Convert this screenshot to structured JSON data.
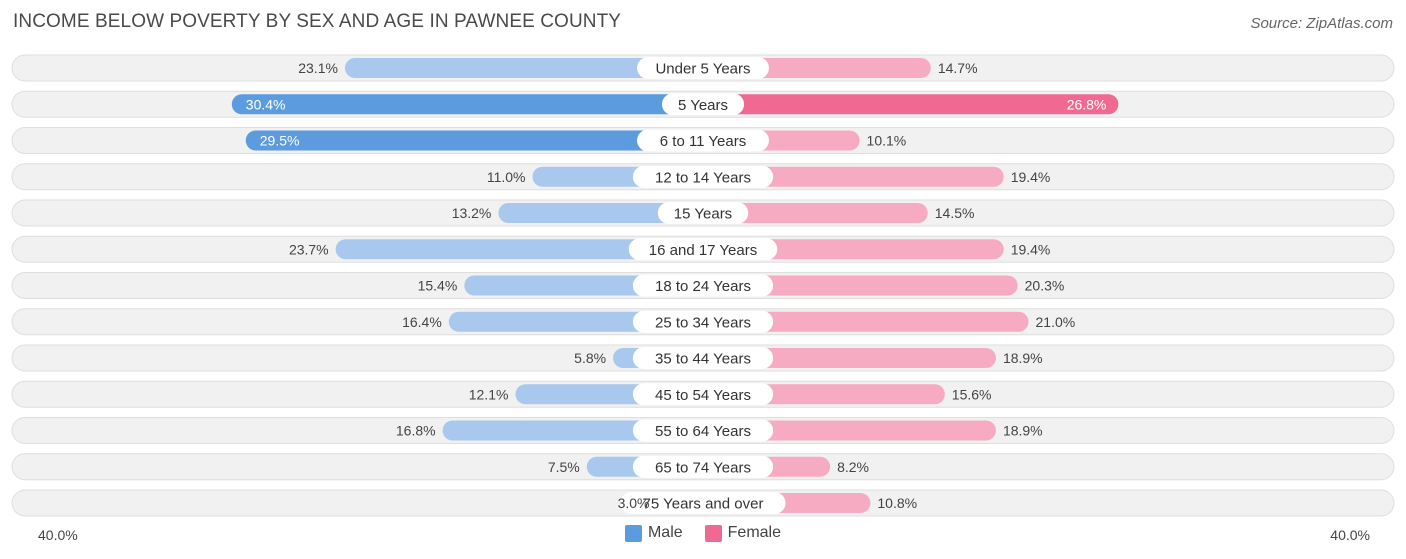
{
  "title": "INCOME BELOW POVERTY BY SEX AND AGE IN PAWNEE COUNTY",
  "source": "Source: ZipAtlas.com",
  "colors": {
    "male_dark": "#5b9bde",
    "male_light": "#a9c8ee",
    "female_dark": "#f06992",
    "female_light": "#f7abc3",
    "row_bg": "#f1f1f1",
    "row_border": "#dedede"
  },
  "chart_data": {
    "type": "bar",
    "orientation": "horizontal-diverging",
    "title": "INCOME BELOW POVERTY BY SEX AND AGE IN PAWNEE COUNTY",
    "categories": [
      "Under 5 Years",
      "5 Years",
      "6 to 11 Years",
      "12 to 14 Years",
      "15 Years",
      "16 and 17 Years",
      "18 to 24 Years",
      "25 to 34 Years",
      "35 to 44 Years",
      "45 to 54 Years",
      "55 to 64 Years",
      "65 to 74 Years",
      "75 Years and over"
    ],
    "series": [
      {
        "name": "Male",
        "values": [
          23.1,
          30.4,
          29.5,
          11.0,
          13.2,
          23.7,
          15.4,
          16.4,
          5.8,
          12.1,
          16.8,
          7.5,
          3.0
        ]
      },
      {
        "name": "Female",
        "values": [
          14.7,
          26.8,
          10.1,
          19.4,
          14.5,
          19.4,
          20.3,
          21.0,
          18.9,
          15.6,
          18.9,
          8.2,
          10.8
        ]
      }
    ],
    "xlim": [
      -40,
      40
    ],
    "axis_labels": {
      "left": "40.0%",
      "right": "40.0%"
    },
    "legend": [
      "Male",
      "Female"
    ],
    "legend_position": "bottom-center"
  }
}
